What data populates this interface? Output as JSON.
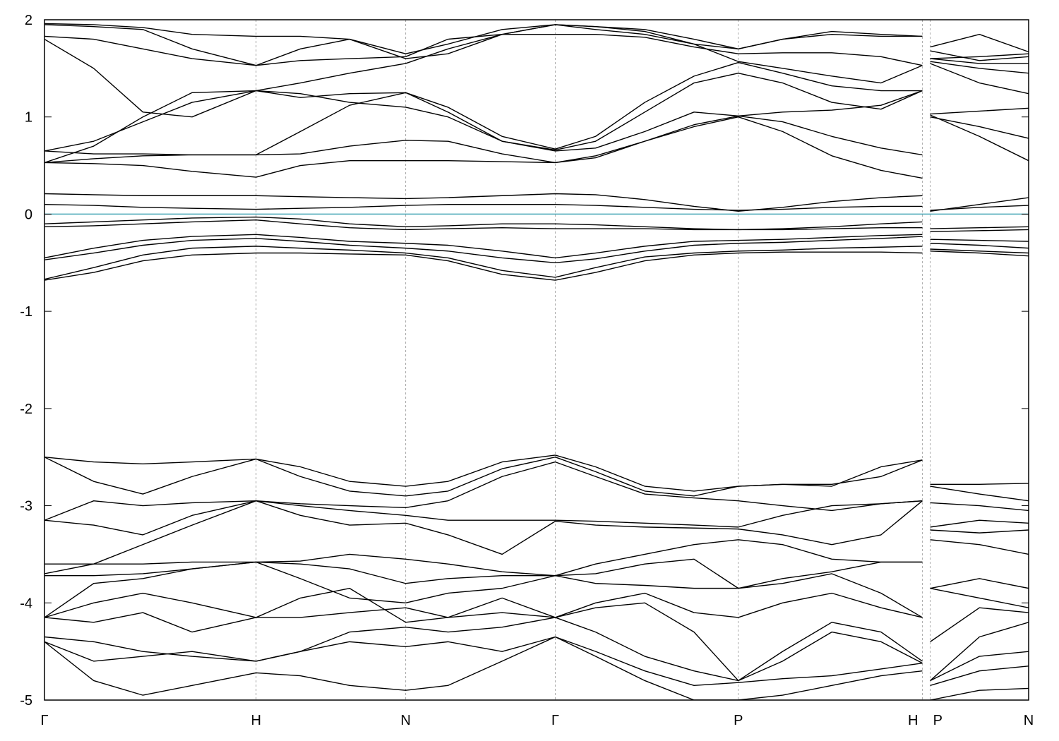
{
  "chart_data": {
    "type": "line",
    "xlim": [
      0,
      100
    ],
    "ylim": [
      -5,
      2
    ],
    "yticks": [
      2,
      1,
      0,
      -1,
      -2,
      -3,
      -4,
      -5
    ],
    "xticks": [
      {
        "value": 0,
        "label": "Γ"
      },
      {
        "value": 21.5,
        "label": "H"
      },
      {
        "value": 36.7,
        "label": "N"
      },
      {
        "value": 51.9,
        "label": "Γ"
      },
      {
        "value": 70.5,
        "label": "P"
      },
      {
        "value": 89.2,
        "label": "H"
      },
      {
        "value": 90,
        "label": "P"
      },
      {
        "value": 100,
        "label": "N"
      }
    ],
    "grid": true,
    "color": "#000000",
    "fermi_level": 0,
    "fermi_color": "#4aa8b8",
    "x": [
      0,
      5,
      10,
      15,
      21.5,
      26,
      31,
      36.7,
      41,
      46.5,
      51.9,
      56,
      61,
      66,
      70.5,
      75,
      80,
      85,
      89.2,
      89.6,
      90,
      95,
      100
    ],
    "series": [
      {
        "values": [
          0.21,
          0.2,
          0.19,
          0.19,
          0.19,
          0.18,
          0.17,
          0.16,
          0.17,
          0.19,
          0.21,
          0.2,
          0.15,
          0.08,
          0.03,
          0.07,
          0.13,
          0.17,
          0.19,
          null,
          0.03,
          0.1,
          0.17
        ]
      },
      {
        "values": [
          0.1,
          0.09,
          0.07,
          0.06,
          0.05,
          0.06,
          0.07,
          0.09,
          0.1,
          0.1,
          0.1,
          0.09,
          0.07,
          0.05,
          0.04,
          0.05,
          0.07,
          0.08,
          0.08,
          null,
          0.04,
          0.07,
          0.09
        ]
      },
      {
        "values": [
          -0.1,
          -0.08,
          -0.06,
          -0.04,
          -0.03,
          -0.05,
          -0.1,
          -0.13,
          -0.12,
          -0.1,
          -0.1,
          -0.11,
          -0.13,
          -0.15,
          -0.16,
          -0.15,
          -0.13,
          -0.1,
          -0.08,
          null,
          -0.15,
          -0.14,
          -0.13
        ]
      },
      {
        "values": [
          -0.13,
          -0.12,
          -0.1,
          -0.08,
          -0.06,
          -0.1,
          -0.14,
          -0.16,
          -0.15,
          -0.14,
          -0.15,
          -0.15,
          -0.15,
          -0.16,
          -0.16,
          -0.16,
          -0.15,
          -0.14,
          -0.14,
          null,
          -0.18,
          -0.17,
          -0.16
        ]
      },
      {
        "values": [
          -0.45,
          -0.35,
          -0.27,
          -0.23,
          -0.21,
          -0.24,
          -0.28,
          -0.3,
          -0.32,
          -0.38,
          -0.45,
          -0.4,
          -0.33,
          -0.28,
          -0.27,
          -0.26,
          -0.24,
          -0.22,
          -0.21,
          null,
          -0.26,
          -0.27,
          -0.28
        ]
      },
      {
        "values": [
          -0.47,
          -0.4,
          -0.32,
          -0.27,
          -0.25,
          -0.28,
          -0.32,
          -0.35,
          -0.38,
          -0.45,
          -0.5,
          -0.46,
          -0.38,
          -0.32,
          -0.3,
          -0.29,
          -0.27,
          -0.25,
          -0.23,
          null,
          -0.3,
          -0.32,
          -0.35
        ]
      },
      {
        "values": [
          -0.67,
          -0.55,
          -0.42,
          -0.35,
          -0.33,
          -0.35,
          -0.37,
          -0.4,
          -0.45,
          -0.58,
          -0.65,
          -0.55,
          -0.44,
          -0.4,
          -0.38,
          -0.37,
          -0.35,
          -0.34,
          -0.33,
          null,
          -0.36,
          -0.38,
          -0.4
        ]
      },
      {
        "values": [
          -0.68,
          -0.6,
          -0.48,
          -0.42,
          -0.4,
          -0.4,
          -0.41,
          -0.42,
          -0.48,
          -0.62,
          -0.68,
          -0.6,
          -0.48,
          -0.42,
          -0.4,
          -0.39,
          -0.39,
          -0.39,
          -0.4,
          null,
          -0.38,
          -0.4,
          -0.43
        ]
      },
      {
        "values": [
          0.53,
          0.52,
          0.5,
          0.44,
          0.38,
          0.5,
          0.55,
          0.55,
          0.55,
          0.54,
          0.53,
          0.6,
          0.75,
          0.9,
          1.0,
          0.85,
          0.6,
          0.45,
          0.37,
          null,
          1.02,
          0.8,
          0.55
        ]
      },
      {
        "values": [
          0.53,
          0.57,
          0.6,
          0.61,
          0.61,
          0.62,
          0.7,
          0.76,
          0.75,
          0.62,
          0.53,
          0.58,
          0.75,
          0.92,
          1.01,
          0.95,
          0.8,
          0.68,
          0.61,
          null,
          1.0,
          0.9,
          0.78
        ]
      },
      {
        "values": [
          0.65,
          0.62,
          0.62,
          0.61,
          0.61,
          0.85,
          1.12,
          1.25,
          1.05,
          0.75,
          0.65,
          0.68,
          0.85,
          1.05,
          1.01,
          1.05,
          1.07,
          1.12,
          1.27,
          null,
          1.03,
          1.06,
          1.09
        ]
      },
      {
        "values": [
          0.65,
          0.75,
          0.95,
          1.15,
          1.27,
          1.24,
          1.15,
          1.1,
          1.0,
          0.75,
          0.66,
          0.75,
          1.05,
          1.35,
          1.45,
          1.35,
          1.15,
          1.08,
          1.27,
          null,
          1.55,
          1.35,
          1.24
        ]
      },
      {
        "values": [
          0.53,
          0.7,
          1.0,
          1.25,
          1.27,
          1.2,
          1.24,
          1.25,
          1.1,
          0.8,
          0.67,
          0.8,
          1.15,
          1.42,
          1.56,
          1.45,
          1.32,
          1.27,
          1.27,
          null,
          1.57,
          1.5,
          1.45
        ]
      },
      {
        "values": [
          1.8,
          1.5,
          1.05,
          1.0,
          1.27,
          1.35,
          1.45,
          1.55,
          1.7,
          1.85,
          1.95,
          1.9,
          1.85,
          1.75,
          1.57,
          1.5,
          1.42,
          1.35,
          1.53,
          null,
          1.6,
          1.55,
          1.55
        ]
      },
      {
        "values": [
          1.83,
          1.8,
          1.7,
          1.6,
          1.53,
          1.58,
          1.6,
          1.62,
          1.8,
          1.85,
          1.85,
          1.85,
          1.82,
          1.72,
          1.65,
          1.66,
          1.66,
          1.62,
          1.53,
          null,
          1.68,
          1.58,
          1.62
        ]
      },
      {
        "values": [
          1.95,
          1.93,
          1.9,
          1.7,
          1.53,
          1.7,
          1.8,
          1.65,
          1.75,
          1.9,
          1.95,
          1.93,
          1.88,
          1.75,
          1.7,
          1.8,
          1.88,
          1.85,
          1.83,
          null,
          1.72,
          1.85,
          1.67
        ]
      },
      {
        "values": [
          1.96,
          1.95,
          1.92,
          1.85,
          1.83,
          1.83,
          1.8,
          1.6,
          1.65,
          1.85,
          1.95,
          1.93,
          1.9,
          1.8,
          1.7,
          1.8,
          1.85,
          1.83,
          1.83,
          null,
          1.6,
          1.62,
          1.65
        ]
      },
      {
        "values": [
          -2.5,
          -2.55,
          -2.57,
          -2.55,
          -2.52,
          -2.6,
          -2.75,
          -2.8,
          -2.75,
          -2.55,
          -2.48,
          -2.6,
          -2.8,
          -2.85,
          -2.8,
          -2.78,
          -2.78,
          -2.7,
          -2.53,
          null,
          -2.78,
          -2.78,
          -2.77
        ]
      },
      {
        "values": [
          -2.5,
          -2.75,
          -2.88,
          -2.7,
          -2.52,
          -2.7,
          -2.85,
          -2.9,
          -2.85,
          -2.62,
          -2.5,
          -2.65,
          -2.85,
          -2.9,
          -2.8,
          -2.78,
          -2.8,
          -2.6,
          -2.53,
          null,
          -2.8,
          -2.88,
          -2.95
        ]
      },
      {
        "values": [
          -3.15,
          -2.95,
          -3.0,
          -2.97,
          -2.95,
          -2.98,
          -3.0,
          -3.02,
          -2.95,
          -2.7,
          -2.55,
          -2.7,
          -2.88,
          -2.92,
          -2.95,
          -3.0,
          -3.05,
          -2.98,
          -2.95,
          null,
          -2.97,
          -3.0,
          -3.05
        ]
      },
      {
        "values": [
          -3.15,
          -3.2,
          -3.3,
          -3.1,
          -2.95,
          -3.0,
          -3.05,
          -3.1,
          -3.15,
          -3.15,
          -3.15,
          -3.16,
          -3.18,
          -3.2,
          -3.22,
          -3.1,
          -3.0,
          -2.98,
          -2.95,
          null,
          -3.22,
          -3.15,
          -3.18
        ]
      },
      {
        "values": [
          -3.7,
          -3.6,
          -3.4,
          -3.2,
          -2.95,
          -3.1,
          -3.2,
          -3.18,
          -3.3,
          -3.5,
          -3.16,
          -3.2,
          -3.22,
          -3.23,
          -3.24,
          -3.3,
          -3.4,
          -3.3,
          -2.95,
          null,
          -3.25,
          -3.28,
          -3.25
        ]
      },
      {
        "values": [
          -3.6,
          -3.6,
          -3.6,
          -3.58,
          -3.58,
          -3.57,
          -3.5,
          -3.55,
          -3.6,
          -3.68,
          -3.72,
          -3.6,
          -3.5,
          -3.4,
          -3.35,
          -3.4,
          -3.55,
          -3.58,
          -3.58,
          null,
          -3.35,
          -3.4,
          -3.5
        ]
      },
      {
        "values": [
          -3.72,
          -3.72,
          -3.7,
          -3.65,
          -3.58,
          -3.6,
          -3.65,
          -3.8,
          -3.75,
          -3.72,
          -3.72,
          -3.7,
          -3.6,
          -3.55,
          -3.85,
          -3.75,
          -3.68,
          -3.58,
          -3.58,
          null,
          -3.85,
          -3.75,
          -3.85
        ]
      },
      {
        "values": [
          -4.15,
          -3.8,
          -3.75,
          -3.65,
          -3.58,
          -3.75,
          -3.95,
          -4.0,
          -3.9,
          -3.85,
          -3.72,
          -3.8,
          -3.82,
          -3.85,
          -3.85,
          -3.8,
          -3.7,
          -3.9,
          -4.15,
          null,
          -3.85,
          -3.95,
          -4.05
        ]
      },
      {
        "values": [
          -4.15,
          -4.0,
          -3.9,
          -4.0,
          -4.15,
          -4.15,
          -4.1,
          -4.05,
          -4.15,
          -3.95,
          -4.15,
          -4.0,
          -3.9,
          -4.1,
          -4.15,
          -4.0,
          -3.9,
          -4.05,
          -4.15,
          null,
          -4.4,
          -4.05,
          -4.1
        ]
      },
      {
        "values": [
          -4.15,
          -4.2,
          -4.1,
          -4.3,
          -4.15,
          -3.95,
          -3.85,
          -4.2,
          -4.15,
          -4.1,
          -4.15,
          -4.05,
          -4.0,
          -4.3,
          -4.8,
          -4.5,
          -4.2,
          -4.3,
          -4.6,
          null,
          -4.8,
          -4.35,
          -4.2
        ]
      },
      {
        "values": [
          -4.35,
          -4.4,
          -4.5,
          -4.55,
          -4.6,
          -4.5,
          -4.3,
          -4.25,
          -4.3,
          -4.25,
          -4.15,
          -4.3,
          -4.55,
          -4.7,
          -4.8,
          -4.6,
          -4.3,
          -4.4,
          -4.62,
          null,
          -4.8,
          -4.55,
          -4.5
        ]
      },
      {
        "values": [
          -4.4,
          -4.6,
          -4.55,
          -4.5,
          -4.6,
          -4.5,
          -4.4,
          -4.45,
          -4.4,
          -4.5,
          -4.35,
          -4.5,
          -4.7,
          -4.85,
          -4.82,
          -4.78,
          -4.75,
          -4.68,
          -4.62,
          null,
          -4.85,
          -4.7,
          -4.65
        ]
      },
      {
        "values": [
          -4.4,
          -4.8,
          -4.95,
          -4.85,
          -4.72,
          -4.75,
          -4.85,
          -4.9,
          -4.85,
          -4.6,
          -4.35,
          -4.55,
          -4.8,
          -5.0,
          -5.0,
          -4.95,
          -4.85,
          -4.75,
          -4.7,
          null,
          -5.0,
          -4.9,
          -4.88
        ]
      }
    ]
  }
}
